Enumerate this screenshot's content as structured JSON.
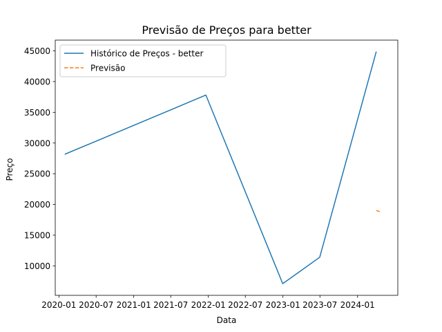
{
  "chart_data": {
    "type": "line",
    "title": "Previsão de Preços para better",
    "xlabel": "Data",
    "ylabel": "Preço",
    "x_axis": {
      "type": "date",
      "range": [
        "2019-12-14",
        "2024-07-16"
      ],
      "ticks": [
        "2020-01-01",
        "2020-07-01",
        "2021-01-01",
        "2021-07-01",
        "2022-01-01",
        "2022-07-01",
        "2023-01-01",
        "2023-07-01",
        "2024-01-01"
      ],
      "tick_labels": [
        "2020-01",
        "2020-07",
        "2021-01",
        "2021-07",
        "2022-01",
        "2022-07",
        "2023-01",
        "2023-07",
        "2024-01"
      ]
    },
    "y_axis": {
      "range": [
        5200,
        46750
      ],
      "ticks": [
        10000,
        15000,
        20000,
        25000,
        30000,
        35000,
        40000,
        45000
      ],
      "tick_labels": [
        "10000",
        "15000",
        "20000",
        "25000",
        "30000",
        "35000",
        "40000",
        "45000"
      ]
    },
    "grid": false,
    "legend_position": "top-left",
    "series": [
      {
        "name": "Histórico de Preços - better",
        "color": "#1f77b4",
        "style": "solid",
        "points": [
          {
            "x": "2020-02-01",
            "y": 28200
          },
          {
            "x": "2021-12-20",
            "y": 37800
          },
          {
            "x": "2022-12-31",
            "y": 7100
          },
          {
            "x": "2023-06-30",
            "y": 11400
          },
          {
            "x": "2024-04-01",
            "y": 44800
          }
        ]
      },
      {
        "name": "Previsão",
        "color": "#ff7f0e",
        "style": "dashed",
        "points": [
          {
            "x": "2024-04-01",
            "y": 19000
          },
          {
            "x": "2024-04-25",
            "y": 18800
          }
        ]
      }
    ]
  }
}
